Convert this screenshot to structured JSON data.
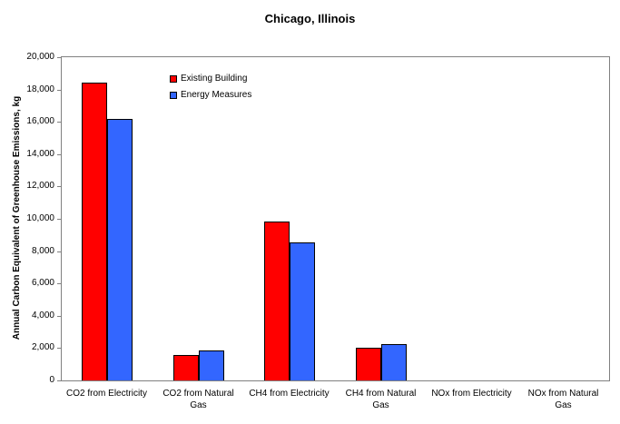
{
  "chart_data": {
    "type": "bar",
    "title": "Chicago, Illinois",
    "xlabel": "",
    "ylabel": "Annual Carbon Equivalent of Greenhouse Emissions, kg",
    "categories": [
      "CO2 from Electricity",
      "CO2 from Natural\nGas",
      "CH4 from Electricity",
      "CH4 from Natural\nGas",
      "NOx from Electricity",
      "NOx from Natural\nGas"
    ],
    "series": [
      {
        "name": "Existing Building",
        "color": "#FF0000",
        "values": [
          18400,
          1600,
          9850,
          2000,
          0,
          0
        ]
      },
      {
        "name": "Energy Measures",
        "color": "#3366FF",
        "values": [
          16200,
          1850,
          8550,
          2250,
          0,
          0
        ]
      }
    ],
    "ylim": [
      0,
      20000
    ],
    "ytick_step": 2000,
    "ytick_labels": [
      "0",
      "2,000",
      "4,000",
      "6,000",
      "8,000",
      "10,000",
      "12,000",
      "14,000",
      "16,000",
      "18,000",
      "20,000"
    ],
    "grid": false,
    "legend_position": "inside-top-left",
    "colors": {
      "bar_border": "#000000",
      "axis_box": "#808080",
      "text": "#000000",
      "background": "#FFFFFF"
    }
  }
}
